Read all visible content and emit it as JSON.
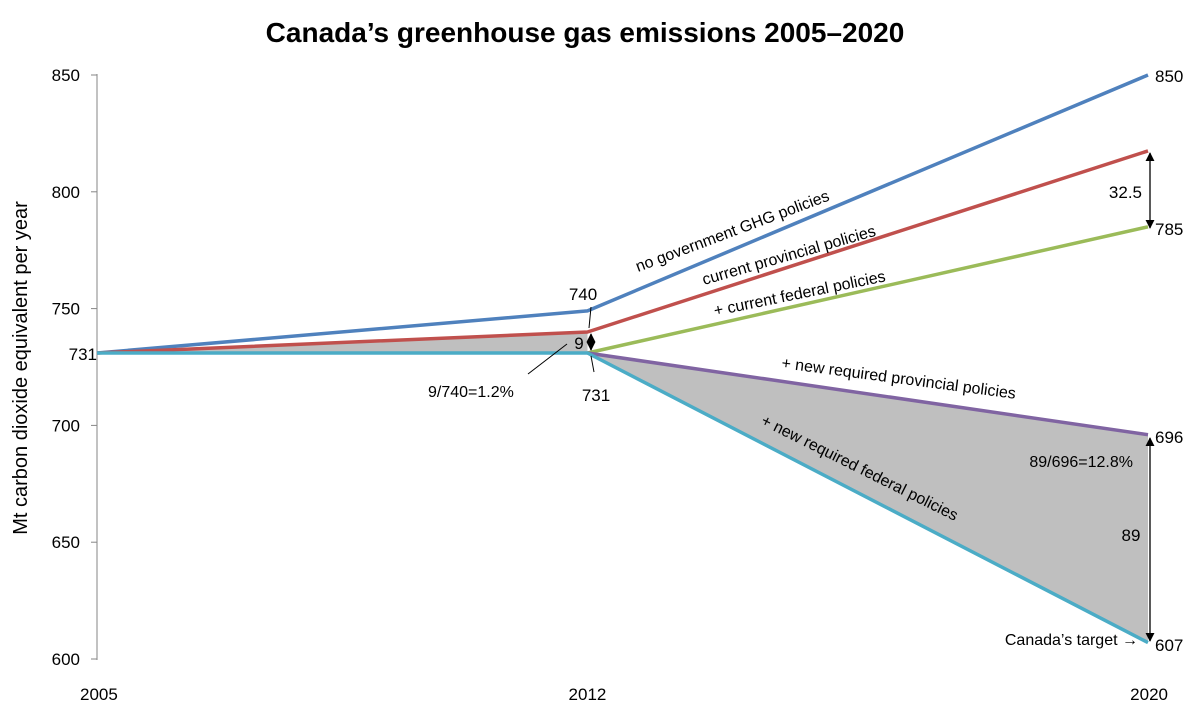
{
  "chart_data": {
    "type": "line",
    "title": "Canada’s greenhouse gas emissions 2005–2020",
    "xlabel": "",
    "ylabel": "Mt carbon dioxide equivalent per year",
    "x": [
      2005,
      2012,
      2020
    ],
    "xlim": [
      2005,
      2020
    ],
    "ylim": [
      600,
      850
    ],
    "y_ticks": [
      600,
      650,
      700,
      750,
      800,
      850
    ],
    "x_ticks": [
      2005,
      2012,
      2020
    ],
    "grid": false,
    "legend": "none (series labeled inline)",
    "series": [
      {
        "name": "no government GHG policies",
        "color": "#4f81bd",
        "points": [
          [
            2005,
            731
          ],
          [
            2012,
            749
          ],
          [
            2020,
            850
          ]
        ]
      },
      {
        "name": "current provincial policies",
        "color": "#c0504d",
        "points": [
          [
            2005,
            731
          ],
          [
            2012,
            740
          ],
          [
            2020,
            817.5
          ]
        ]
      },
      {
        "name": "+ current federal policies",
        "color": "#9bbb59",
        "points": [
          [
            2012,
            731
          ],
          [
            2020,
            785
          ]
        ]
      },
      {
        "name": "+ new required provincial policies",
        "color": "#8064a2",
        "points": [
          [
            2012,
            731
          ],
          [
            2020,
            696
          ]
        ]
      },
      {
        "name": "+ new required federal policies",
        "color": "#4bacc6",
        "points": [
          [
            2005,
            731
          ],
          [
            2012,
            731
          ],
          [
            2020,
            607
          ]
        ]
      }
    ],
    "shaded_gaps": [
      {
        "between": [
          "current provincial policies",
          "+ new required federal policies"
        ],
        "x": [
          2005,
          2012
        ],
        "color": "#bfbfbf"
      },
      {
        "between": [
          "+ new required provincial policies",
          "+ new required federal policies"
        ],
        "x": [
          2012,
          2020
        ],
        "color": "#bfbfbf"
      }
    ],
    "annotations": {
      "y_2005": "731",
      "val_740": "740",
      "gap_9": "9",
      "val_731": "731",
      "pct_2012": "9/740=1.2%",
      "end_850": "850",
      "end_785": "785",
      "gap_32_5": "32.5",
      "end_696": "696",
      "pct_2020": "89/696=12.8%",
      "gap_89": "89",
      "end_607": "607",
      "target_label": "Canada’s target →"
    }
  }
}
